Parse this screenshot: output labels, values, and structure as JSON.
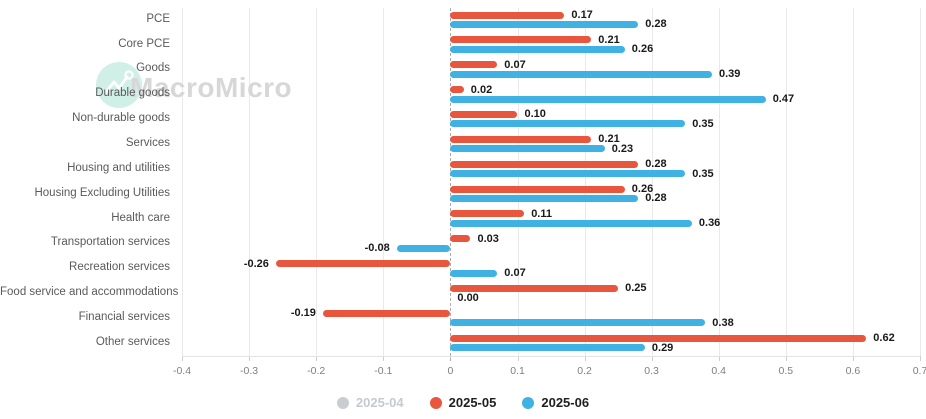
{
  "watermark": {
    "text": "MacroMicro"
  },
  "chart_data": {
    "type": "bar",
    "orientation": "horizontal",
    "title": "",
    "xlabel": "",
    "ylabel": "",
    "xlim": [
      -0.4,
      0.7
    ],
    "xticks": [
      -0.4,
      -0.3,
      -0.2,
      -0.1,
      0,
      0.1,
      0.2,
      0.3,
      0.4,
      0.5,
      0.6,
      0.7
    ],
    "grid": true,
    "zero_line_style": "dashed",
    "legend_position": "bottom",
    "value_label_decimals": 2,
    "categories": [
      "PCE",
      "Core PCE",
      "Goods",
      "Durable goods",
      "Non-durable goods",
      "Services",
      "Housing and utilities",
      "Housing Excluding Utilities",
      "Health care",
      "Transportation services",
      "Recreation services",
      "Food service and accommodations",
      "Financial services",
      "Other services"
    ],
    "series": [
      {
        "name": "2025-04",
        "color": "#c9cdd2",
        "active": false,
        "values": null
      },
      {
        "name": "2025-05",
        "color": "#e8563e",
        "active": true,
        "values": [
          0.17,
          0.21,
          0.07,
          0.02,
          0.1,
          0.21,
          0.28,
          0.26,
          0.11,
          0.03,
          -0.26,
          0.25,
          -0.19,
          0.62
        ]
      },
      {
        "name": "2025-06",
        "color": "#3fb1e2",
        "active": true,
        "values": [
          0.28,
          0.26,
          0.39,
          0.47,
          0.35,
          0.23,
          0.35,
          0.28,
          0.36,
          -0.08,
          0.07,
          0.0,
          0.38,
          0.29
        ]
      }
    ]
  },
  "colors": {
    "grid": "#e9e9e9",
    "axis": "#e3e3e3",
    "tick": "#cfcfcf",
    "zero_line": "#ababab",
    "category_label": "#5a5a5a",
    "tick_label": "#7f7f7f",
    "value_label": "#191919",
    "legend_active_text": "#1f1f1f",
    "legend_inactive_text": "#c5cad0",
    "watermark_text": "#d7d7d7",
    "watermark_logo": "#8fd9c5"
  }
}
